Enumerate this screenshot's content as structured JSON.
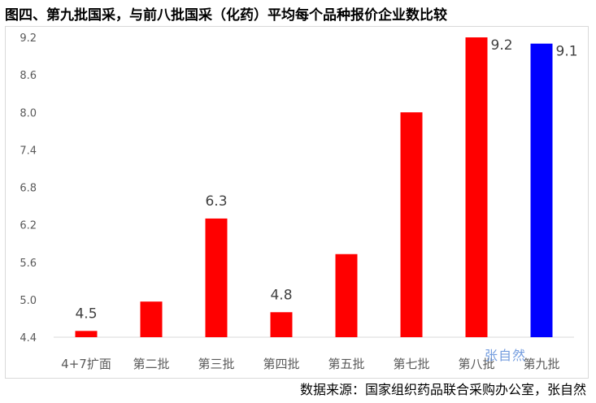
{
  "title": "图四、第九批国采，与前八批国采（化药）平均每个品种报价企业数比较",
  "source": "数据来源：国家组织药品联合采购办公室，张自然",
  "watermark": "张自然",
  "colors": {
    "default_bar": "#ff0000",
    "highlight_bar": "#0000ff",
    "axis": "#d9d9d9",
    "text": "#595959"
  },
  "chart_data": {
    "type": "bar",
    "title": "图四、第九批国采，与前八批国采（化药）平均每个品种报价企业数比较",
    "xlabel": "",
    "ylabel": "",
    "ylim": [
      4.4,
      9.2
    ],
    "yticks": [
      "4.4",
      "5.0",
      "5.6",
      "6.2",
      "6.8",
      "7.4",
      "8.0",
      "8.6",
      "9.2"
    ],
    "grid": false,
    "legend": "none",
    "categories": [
      "4+7扩面",
      "第二批",
      "第三批",
      "第四批",
      "第五批",
      "第七批",
      "第八批",
      "第九批"
    ],
    "values": [
      4.5,
      4.97,
      6.3,
      4.8,
      5.73,
      8.0,
      9.2,
      9.1
    ],
    "labels": [
      "4.5",
      "",
      "6.3",
      "4.8",
      "",
      "",
      "9.2",
      "9.1"
    ],
    "highlight_index": 7
  }
}
